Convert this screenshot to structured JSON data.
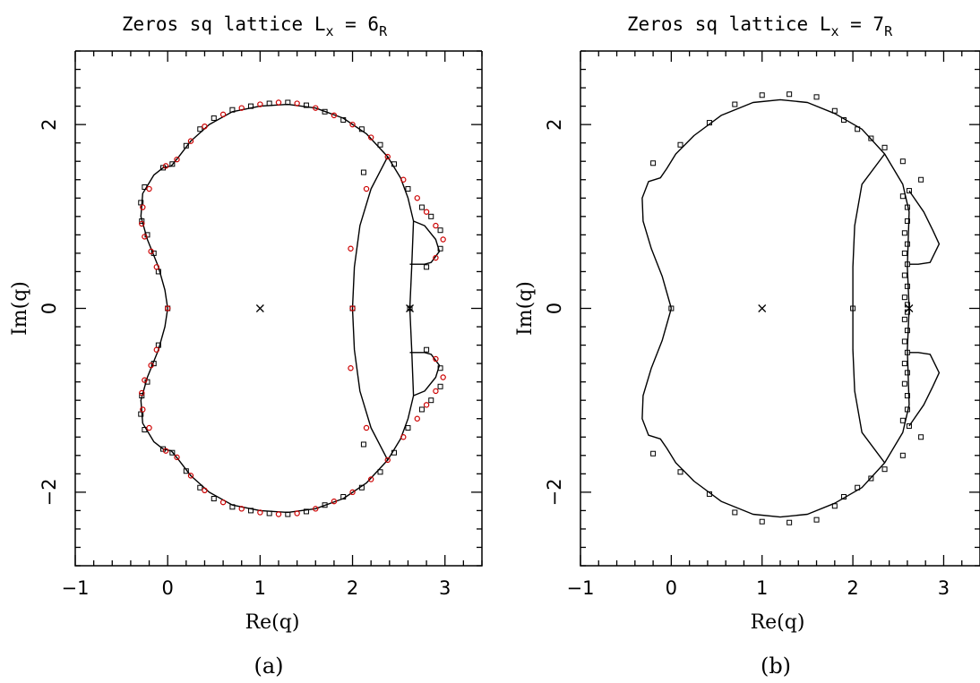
{
  "chart_data": [
    {
      "type": "scatter",
      "panel": "(a)",
      "title": {
        "main": "Zeros sq lattice L",
        "sub": "x",
        "eq": " = 6",
        "subsup": "R"
      },
      "xlabel": "Re(q)",
      "ylabel": "Im(q)",
      "xlim": [
        -1,
        3.4
      ],
      "ylim": [
        -2.8,
        2.8
      ],
      "x_ticks": [
        -1,
        0,
        1,
        2,
        3
      ],
      "y_ticks": [
        -2,
        0,
        2
      ],
      "grid": false,
      "marked_points": [
        [
          1,
          0
        ],
        [
          2.62,
          0
        ]
      ],
      "series": [
        {
          "marker": "square",
          "color": "#000000",
          "points": [
            [
              0.0,
              0.0
            ],
            [
              -0.1,
              0.4
            ],
            [
              -0.15,
              0.6
            ],
            [
              -0.22,
              0.8
            ],
            [
              -0.28,
              0.95
            ],
            [
              -0.29,
              1.15
            ],
            [
              -0.25,
              1.32
            ],
            [
              -0.05,
              1.53
            ],
            [
              0.05,
              1.57
            ],
            [
              0.2,
              1.77
            ],
            [
              0.35,
              1.95
            ],
            [
              0.5,
              2.07
            ],
            [
              0.7,
              2.16
            ],
            [
              0.9,
              2.2
            ],
            [
              1.1,
              2.23
            ],
            [
              1.3,
              2.24
            ],
            [
              1.5,
              2.21
            ],
            [
              1.7,
              2.14
            ],
            [
              1.9,
              2.05
            ],
            [
              2.1,
              1.95
            ],
            [
              2.3,
              1.78
            ],
            [
              2.45,
              1.57
            ],
            [
              2.6,
              1.3
            ],
            [
              2.75,
              1.1
            ],
            [
              2.85,
              1.0
            ],
            [
              2.95,
              0.85
            ],
            [
              2.95,
              0.65
            ],
            [
              2.8,
              0.45
            ],
            [
              2.12,
              1.48
            ],
            [
              2.0,
              0.0
            ],
            [
              2.62,
              0.0
            ]
          ]
        },
        {
          "marker": "circle",
          "color": "#cc0000",
          "points": [
            [
              0.0,
              0.0
            ],
            [
              -0.12,
              0.45
            ],
            [
              -0.18,
              0.62
            ],
            [
              -0.25,
              0.78
            ],
            [
              -0.28,
              0.92
            ],
            [
              -0.27,
              1.1
            ],
            [
              -0.2,
              1.3
            ],
            [
              -0.02,
              1.55
            ],
            [
              0.1,
              1.62
            ],
            [
              0.25,
              1.82
            ],
            [
              0.4,
              1.98
            ],
            [
              0.6,
              2.11
            ],
            [
              0.8,
              2.18
            ],
            [
              1.0,
              2.22
            ],
            [
              1.2,
              2.24
            ],
            [
              1.4,
              2.23
            ],
            [
              1.6,
              2.18
            ],
            [
              1.8,
              2.1
            ],
            [
              2.0,
              2.0
            ],
            [
              2.2,
              1.86
            ],
            [
              2.38,
              1.65
            ],
            [
              2.55,
              1.4
            ],
            [
              2.7,
              1.2
            ],
            [
              2.8,
              1.05
            ],
            [
              2.9,
              0.9
            ],
            [
              2.98,
              0.75
            ],
            [
              2.9,
              0.55
            ],
            [
              2.15,
              1.3
            ],
            [
              1.98,
              0.65
            ],
            [
              2.0,
              0.0
            ]
          ]
        }
      ],
      "caption": "(a)"
    },
    {
      "type": "scatter",
      "panel": "(b)",
      "title": {
        "main": "Zeros sq lattice L",
        "sub": "x",
        "eq": " = 7",
        "subsup": "R"
      },
      "xlabel": "Re(q)",
      "ylabel": "Im(q)",
      "xlim": [
        -1,
        3.4
      ],
      "ylim": [
        -2.8,
        2.8
      ],
      "x_ticks": [
        -1,
        0,
        1,
        2,
        3
      ],
      "y_ticks": [
        -2,
        0,
        2
      ],
      "grid": false,
      "marked_points": [
        [
          1,
          0
        ],
        [
          2.62,
          0
        ]
      ],
      "series": [
        {
          "marker": "square",
          "color": "#000000",
          "points": [
            [
              0.0,
              0.0
            ],
            [
              -0.2,
              1.58
            ],
            [
              0.1,
              1.78
            ],
            [
              0.42,
              2.02
            ],
            [
              0.7,
              2.22
            ],
            [
              1.0,
              2.32
            ],
            [
              1.3,
              2.33
            ],
            [
              1.6,
              2.3
            ],
            [
              1.8,
              2.15
            ],
            [
              1.9,
              2.05
            ],
            [
              2.05,
              1.95
            ],
            [
              2.2,
              1.85
            ],
            [
              2.35,
              1.75
            ],
            [
              2.55,
              1.6
            ],
            [
              2.62,
              1.28
            ],
            [
              2.55,
              1.22
            ],
            [
              2.6,
              1.1
            ],
            [
              2.6,
              0.95
            ],
            [
              2.57,
              0.82
            ],
            [
              2.6,
              0.7
            ],
            [
              2.57,
              0.6
            ],
            [
              2.6,
              0.48
            ],
            [
              2.57,
              0.36
            ],
            [
              2.6,
              0.24
            ],
            [
              2.57,
              0.12
            ],
            [
              2.6,
              0.04
            ],
            [
              2.75,
              1.4
            ],
            [
              2.0,
              0.0
            ]
          ]
        }
      ],
      "caption": "(b)"
    }
  ]
}
